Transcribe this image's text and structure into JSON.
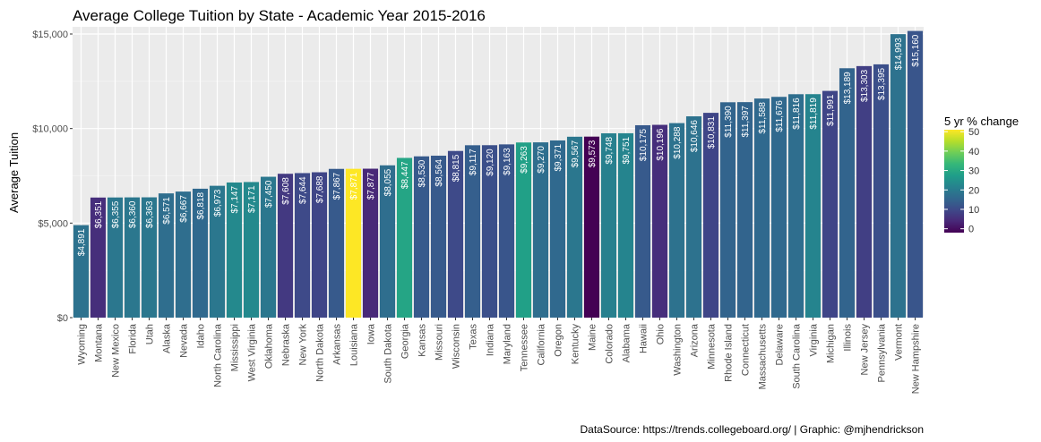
{
  "chart_data": {
    "type": "bar",
    "title": "Average College Tuition by State - Academic Year 2015-2016",
    "xlabel": "",
    "ylabel": "Average Tuition",
    "ylim": [
      0,
      15000
    ],
    "yticks": [
      0,
      5000,
      10000,
      15000
    ],
    "ytick_labels": [
      "$0",
      "$5,000",
      "$10,000",
      "$15,000"
    ],
    "grid": true,
    "legend": {
      "title": "5 yr % change",
      "placement": "right",
      "range": [
        -2,
        51
      ],
      "ticks": [
        0,
        10,
        20,
        30,
        40,
        50
      ],
      "tick_labels": [
        "0",
        "10",
        "20",
        "30",
        "40",
        "50"
      ]
    },
    "caption": "DataSource: https://trends.collegeboard.org/ | Graphic: @mjhendrickson",
    "categories": [
      "Wyoming",
      "Montana",
      "New Mexico",
      "Florida",
      "Utah",
      "Alaska",
      "Nevada",
      "Idaho",
      "North Carolina",
      "Mississippi",
      "West Virginia",
      "Oklahoma",
      "Nebraska",
      "New York",
      "North Dakota",
      "Arkansas",
      "Louisiana",
      "Iowa",
      "South Dakota",
      "Georgia",
      "Kansas",
      "Missouri",
      "Wisconsin",
      "Texas",
      "Indiana",
      "Maryland",
      "Tennessee",
      "California",
      "Oregon",
      "Kentucky",
      "Maine",
      "Colorado",
      "Alabama",
      "Hawaii",
      "Ohio",
      "Washington",
      "Arizona",
      "Minnesota",
      "Rhode Island",
      "Connecticut",
      "Massachusetts",
      "Delaware",
      "South Carolina",
      "Virginia",
      "Michigan",
      "Illinois",
      "New Jersey",
      "Pennsylvania",
      "Vermont",
      "New Hampshire"
    ],
    "values": [
      4891,
      6351,
      6355,
      6360,
      6363,
      6571,
      6667,
      6818,
      6973,
      7147,
      7171,
      7450,
      7608,
      7644,
      7688,
      7867,
      7871,
      7877,
      8055,
      8447,
      8530,
      8564,
      8815,
      9117,
      9120,
      9163,
      9263,
      9270,
      9371,
      9567,
      9573,
      9748,
      9751,
      10175,
      10196,
      10288,
      10646,
      10831,
      11390,
      11397,
      11588,
      11676,
      11816,
      11819,
      11991,
      13189,
      13303,
      13395,
      14993,
      15160
    ],
    "value_labels": [
      "$4,891",
      "$6,351",
      "$6,355",
      "$6,360",
      "$6,363",
      "$6,571",
      "$6,667",
      "$6,818",
      "$6,973",
      "$7,147",
      "$7,171",
      "$7,450",
      "$7,608",
      "$7,644",
      "$7,688",
      "$7,867",
      "$7,871",
      "$7,877",
      "$8,055",
      "$8,447",
      "$8,530",
      "$8,564",
      "$8,815",
      "$9,117",
      "$9,120",
      "$9,163",
      "$9,263",
      "$9,270",
      "$9,371",
      "$9,567",
      "$9,573",
      "$9,748",
      "$9,751",
      "$10,175",
      "$10,196",
      "$10,288",
      "$10,646",
      "$10,831",
      "$11,390",
      "$11,397",
      "$11,588",
      "$11,676",
      "$11,816",
      "$11,819",
      "$11,991",
      "$13,189",
      "$13,303",
      "$13,395",
      "$14,993",
      "$15,160"
    ],
    "color_values": [
      18,
      5,
      19,
      19,
      19,
      17,
      17,
      16,
      19,
      23,
      23,
      19,
      7,
      10,
      9,
      13,
      51,
      4,
      17,
      29,
      13,
      13,
      10,
      14,
      11,
      12,
      28,
      17,
      16,
      19,
      -2,
      21,
      22,
      13,
      5,
      18,
      18,
      9,
      15,
      15,
      16,
      16,
      17,
      22,
      9,
      15,
      8,
      11,
      18,
      12
    ],
    "colors": {
      "panel_bg": "#ebebeb",
      "grid_major": "#ffffff",
      "grid_minor": "#f4f4f4",
      "viridis": [
        "#440154",
        "#482878",
        "#3e4989",
        "#31688e",
        "#26828e",
        "#1f9e89",
        "#35b779",
        "#6ece58",
        "#b5de2b",
        "#fde725"
      ]
    }
  }
}
